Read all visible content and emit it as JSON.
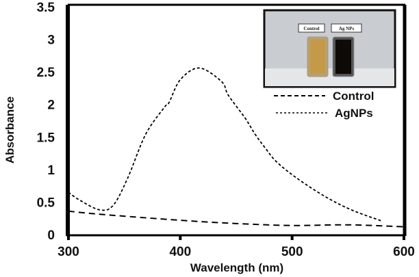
{
  "chart_data": {
    "type": "line",
    "title": "",
    "xlabel": "Wavelength (nm)",
    "ylabel": "Absorbance",
    "xlim": [
      300,
      600
    ],
    "ylim": [
      0,
      3.5
    ],
    "xticks": [
      "300",
      "400",
      "500",
      "600"
    ],
    "yticks": [
      "0",
      "0.5",
      "1",
      "1.5",
      "2",
      "2.5",
      "3",
      "3.5"
    ],
    "grid": false,
    "legend_position": "top-right",
    "series": [
      {
        "name": "Control",
        "style": "long-dash",
        "x": [
          300,
          330,
          400,
          450,
          500,
          550,
          600
        ],
        "y": [
          0.36,
          0.31,
          0.22,
          0.17,
          0.14,
          0.15,
          0.12
        ]
      },
      {
        "name": "AgNPs",
        "style": "short-dash",
        "x": [
          300,
          310,
          328,
          340,
          353,
          369,
          386,
          390,
          400,
          417,
          437,
          443,
          458,
          467,
          476,
          486,
          504,
          529,
          553,
          580
        ],
        "y": [
          0.65,
          0.53,
          0.38,
          0.45,
          0.87,
          1.54,
          1.96,
          2.03,
          2.38,
          2.56,
          2.35,
          2.14,
          1.79,
          1.54,
          1.33,
          1.12,
          0.87,
          0.59,
          0.38,
          0.21
        ]
      }
    ],
    "inset": {
      "labels": [
        "Control",
        "Ag NPs"
      ]
    }
  }
}
